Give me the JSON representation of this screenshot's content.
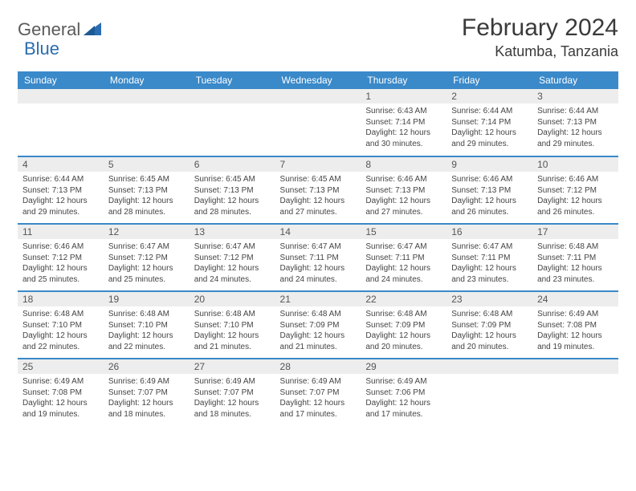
{
  "logo": {
    "text1": "General",
    "text2": "Blue"
  },
  "title": "February 2024",
  "location": "Katumba, Tanzania",
  "colors": {
    "header_bg": "#3a89c9",
    "header_text": "#ffffff",
    "daynum_bg": "#ededed",
    "border": "#3a89c9",
    "logo_gray": "#5a5a5a",
    "logo_blue": "#2a6db0"
  },
  "day_labels": [
    "Sunday",
    "Monday",
    "Tuesday",
    "Wednesday",
    "Thursday",
    "Friday",
    "Saturday"
  ],
  "weeks": [
    [
      null,
      null,
      null,
      null,
      {
        "n": "1",
        "sr": "6:43 AM",
        "ss": "7:14 PM",
        "dl": "12 hours and 30 minutes."
      },
      {
        "n": "2",
        "sr": "6:44 AM",
        "ss": "7:14 PM",
        "dl": "12 hours and 29 minutes."
      },
      {
        "n": "3",
        "sr": "6:44 AM",
        "ss": "7:13 PM",
        "dl": "12 hours and 29 minutes."
      }
    ],
    [
      {
        "n": "4",
        "sr": "6:44 AM",
        "ss": "7:13 PM",
        "dl": "12 hours and 29 minutes."
      },
      {
        "n": "5",
        "sr": "6:45 AM",
        "ss": "7:13 PM",
        "dl": "12 hours and 28 minutes."
      },
      {
        "n": "6",
        "sr": "6:45 AM",
        "ss": "7:13 PM",
        "dl": "12 hours and 28 minutes."
      },
      {
        "n": "7",
        "sr": "6:45 AM",
        "ss": "7:13 PM",
        "dl": "12 hours and 27 minutes."
      },
      {
        "n": "8",
        "sr": "6:46 AM",
        "ss": "7:13 PM",
        "dl": "12 hours and 27 minutes."
      },
      {
        "n": "9",
        "sr": "6:46 AM",
        "ss": "7:13 PM",
        "dl": "12 hours and 26 minutes."
      },
      {
        "n": "10",
        "sr": "6:46 AM",
        "ss": "7:12 PM",
        "dl": "12 hours and 26 minutes."
      }
    ],
    [
      {
        "n": "11",
        "sr": "6:46 AM",
        "ss": "7:12 PM",
        "dl": "12 hours and 25 minutes."
      },
      {
        "n": "12",
        "sr": "6:47 AM",
        "ss": "7:12 PM",
        "dl": "12 hours and 25 minutes."
      },
      {
        "n": "13",
        "sr": "6:47 AM",
        "ss": "7:12 PM",
        "dl": "12 hours and 24 minutes."
      },
      {
        "n": "14",
        "sr": "6:47 AM",
        "ss": "7:11 PM",
        "dl": "12 hours and 24 minutes."
      },
      {
        "n": "15",
        "sr": "6:47 AM",
        "ss": "7:11 PM",
        "dl": "12 hours and 24 minutes."
      },
      {
        "n": "16",
        "sr": "6:47 AM",
        "ss": "7:11 PM",
        "dl": "12 hours and 23 minutes."
      },
      {
        "n": "17",
        "sr": "6:48 AM",
        "ss": "7:11 PM",
        "dl": "12 hours and 23 minutes."
      }
    ],
    [
      {
        "n": "18",
        "sr": "6:48 AM",
        "ss": "7:10 PM",
        "dl": "12 hours and 22 minutes."
      },
      {
        "n": "19",
        "sr": "6:48 AM",
        "ss": "7:10 PM",
        "dl": "12 hours and 22 minutes."
      },
      {
        "n": "20",
        "sr": "6:48 AM",
        "ss": "7:10 PM",
        "dl": "12 hours and 21 minutes."
      },
      {
        "n": "21",
        "sr": "6:48 AM",
        "ss": "7:09 PM",
        "dl": "12 hours and 21 minutes."
      },
      {
        "n": "22",
        "sr": "6:48 AM",
        "ss": "7:09 PM",
        "dl": "12 hours and 20 minutes."
      },
      {
        "n": "23",
        "sr": "6:48 AM",
        "ss": "7:09 PM",
        "dl": "12 hours and 20 minutes."
      },
      {
        "n": "24",
        "sr": "6:49 AM",
        "ss": "7:08 PM",
        "dl": "12 hours and 19 minutes."
      }
    ],
    [
      {
        "n": "25",
        "sr": "6:49 AM",
        "ss": "7:08 PM",
        "dl": "12 hours and 19 minutes."
      },
      {
        "n": "26",
        "sr": "6:49 AM",
        "ss": "7:07 PM",
        "dl": "12 hours and 18 minutes."
      },
      {
        "n": "27",
        "sr": "6:49 AM",
        "ss": "7:07 PM",
        "dl": "12 hours and 18 minutes."
      },
      {
        "n": "28",
        "sr": "6:49 AM",
        "ss": "7:07 PM",
        "dl": "12 hours and 17 minutes."
      },
      {
        "n": "29",
        "sr": "6:49 AM",
        "ss": "7:06 PM",
        "dl": "12 hours and 17 minutes."
      },
      null,
      null
    ]
  ],
  "labels": {
    "sunrise": "Sunrise:",
    "sunset": "Sunset:",
    "daylight": "Daylight:"
  }
}
